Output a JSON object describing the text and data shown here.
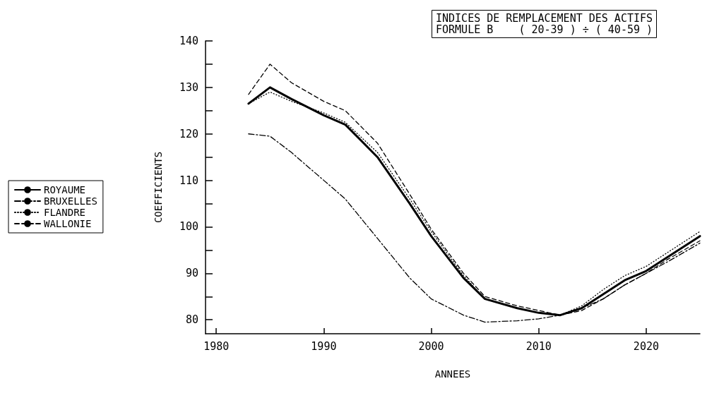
{
  "chart_data": {
    "type": "line",
    "title": "INDICES DE REMPLACEMENT DES ACTIFS",
    "subtitle": "FORMULE B    ( 20-39 ) ÷ ( 40-59 )",
    "xlabel": "ANNEES",
    "ylabel": "COEFFICIENTS",
    "x": [
      1983,
      1985,
      1987,
      1990,
      1992,
      1995,
      1998,
      2000,
      2003,
      2005,
      2008,
      2010,
      2012,
      2014,
      2016,
      2018,
      2020,
      2022,
      2025
    ],
    "series": [
      {
        "name": "ROYAUME",
        "color": "#000000",
        "line_style": "solid",
        "values": [
          126.5,
          130,
          127.5,
          124,
          122,
          115,
          105,
          98,
          89,
          84.5,
          82.5,
          81.5,
          81,
          82.5,
          85.5,
          88.5,
          90.5,
          93.5,
          98
        ]
      },
      {
        "name": "BRUXELLES",
        "color": "#000000",
        "line_style": "dashdot",
        "values": [
          120,
          119.5,
          116,
          110,
          106,
          97.5,
          89,
          84.5,
          81,
          79.5,
          79.8,
          80.2,
          81,
          82.5,
          84.5,
          87.5,
          90,
          92.5,
          96.5
        ]
      },
      {
        "name": "FLANDRE",
        "color": "#000000",
        "line_style": "dotted",
        "values": [
          126.5,
          129,
          127,
          124.5,
          122.5,
          116,
          106,
          99,
          89.5,
          84.5,
          82.5,
          81.5,
          81,
          83,
          86.5,
          89.5,
          91.5,
          94.5,
          99
        ]
      },
      {
        "name": "WALLONIE",
        "color": "#000000",
        "line_style": "dashed",
        "values": [
          128.5,
          135,
          131,
          127,
          125,
          118,
          107,
          99.5,
          90,
          85,
          83,
          82,
          81,
          82,
          84.5,
          87.5,
          90,
          93,
          97
        ]
      }
    ],
    "xlim": [
      1979,
      2025
    ],
    "xticks": [
      1980,
      1990,
      2000,
      2010,
      2020
    ],
    "ylim": [
      77,
      140
    ],
    "yticks": [
      80,
      {
        "value": 85,
        "label": null
      },
      90,
      {
        "value": 95,
        "label": null
      },
      100,
      {
        "value": 105,
        "label": null
      },
      110,
      {
        "value": 115,
        "label": null
      },
      120,
      {
        "value": 125,
        "label": null
      },
      130,
      {
        "value": 135,
        "label": null
      },
      140
    ],
    "grid": false,
    "legend": "left",
    "marker": "none"
  }
}
